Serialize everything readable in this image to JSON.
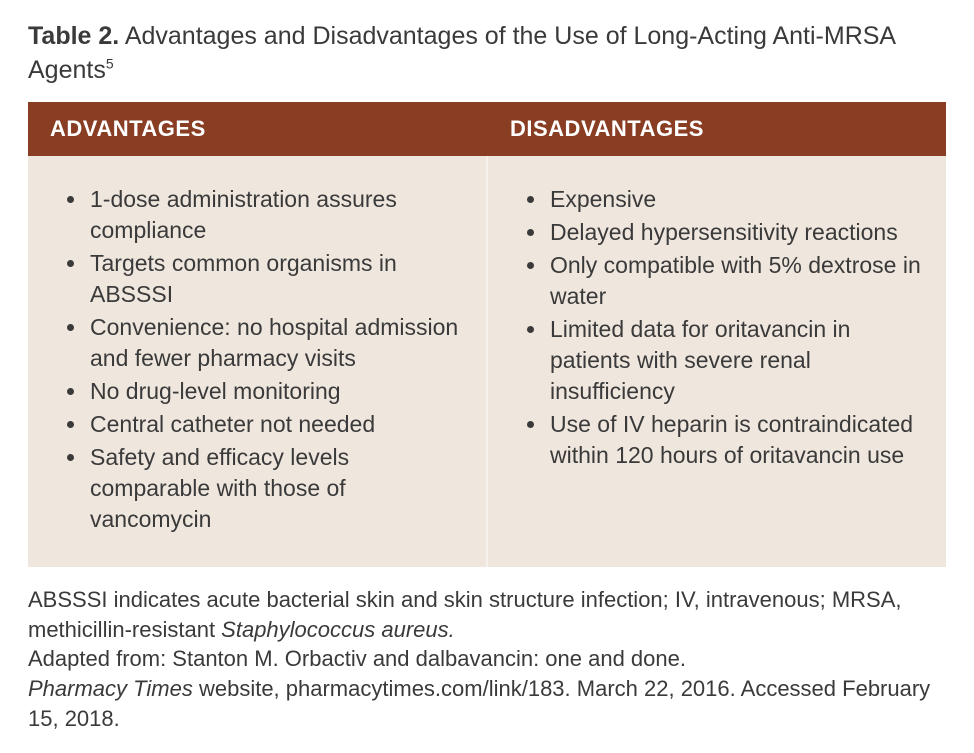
{
  "title": {
    "lead": "Table 2.",
    "rest": " Advantages and Disadvantages of the Use of Long-Acting Anti-MRSA Agents",
    "sup": "5"
  },
  "table": {
    "header_bg": "#893e23",
    "header_fg": "#ffffff",
    "cell_bg": "#efe6de",
    "columns": [
      {
        "label": "ADVANTAGES"
      },
      {
        "label": "DISADVANTAGES"
      }
    ],
    "advantages": [
      "1-dose administration assures compliance",
      "Targets common organisms in ABSSSI",
      "Convenience: no hospital admission and fewer pharmacy visits",
      "No drug-level monitoring",
      "Central catheter not needed",
      "Safety and efficacy levels comparable with those of vancomycin"
    ],
    "disadvantages": [
      "Expensive",
      "Delayed hypersensitivity reactions",
      "Only compatible with 5% dextrose in water",
      "Limited data for oritavancin in patients with severe renal insufficiency",
      "Use of IV heparin is contraindicated within 120 hours of oritavancin use"
    ]
  },
  "footnote": {
    "abbrev_pre": "ABSSSI indicates acute bacterial skin and skin structure infection; IV, intravenous; MRSA, methicillin-resistant ",
    "abbrev_em": "Staphylococcus aureus.",
    "adapted": "Adapted from: Stanton M. Orbactiv and dalbavancin: one and done.",
    "source_em": "Pharmacy Times",
    "source_rest": " website, pharmacytimes.com/link/183. March 22, 2016. Accessed February 15, 2018."
  }
}
